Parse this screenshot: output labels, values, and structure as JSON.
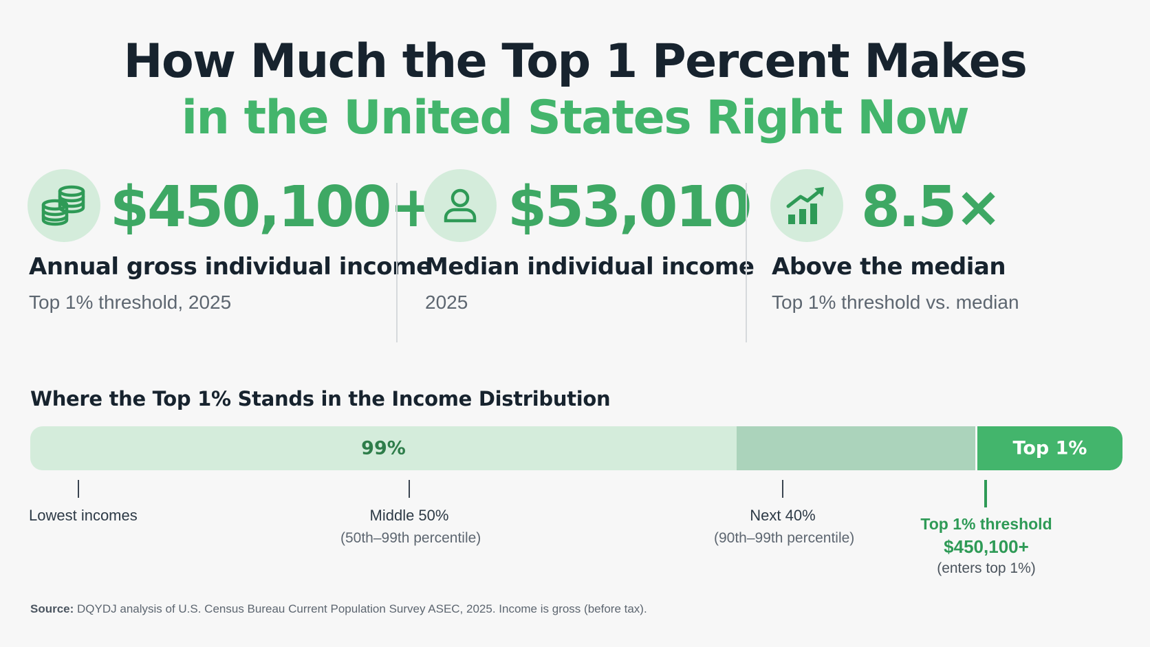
{
  "title": {
    "line1": "How Much the Top 1 Percent Makes",
    "line2": "in the United States Right Now"
  },
  "stats": [
    {
      "icon": "coins-stack-icon",
      "value": "$450,100+",
      "label": "Annual gross individual income",
      "sub": "Top 1% threshold, 2025"
    },
    {
      "icon": "person-icon",
      "value": "$53,010",
      "label": "Median individual income",
      "sub": "2025"
    },
    {
      "icon": "bar-chart-trend-icon",
      "value": "8.5×",
      "label": "Above the median",
      "sub": "Top 1% threshold vs. median"
    }
  ],
  "distribution": {
    "title": "Where the Top 1% Stands in the Income Distribution",
    "bar_left_label": "99%",
    "bar_right_label": "Top 1%",
    "markers": [
      {
        "label": "Lowest incomes"
      },
      {
        "label": "Middle 50%",
        "sub": "(50th–99th percentile)"
      },
      {
        "label": "Next 40%",
        "sub": "(90th–99th percentile)"
      }
    ],
    "threshold": {
      "label": "Top 1% threshold",
      "value": "$450,100+",
      "note": "(enters top 1%)"
    }
  },
  "source": {
    "prefix": "Source:",
    "text": " DQYDJ analysis of U.S. Census Bureau Current Population Survey ASEC, 2025. Income is gross (before tax)."
  },
  "colors": {
    "accent": "#43b56c",
    "accent_dark": "#2e9a56",
    "light": "#d4ecdb",
    "mid": "#abd3bb",
    "heading": "#17232e"
  }
}
